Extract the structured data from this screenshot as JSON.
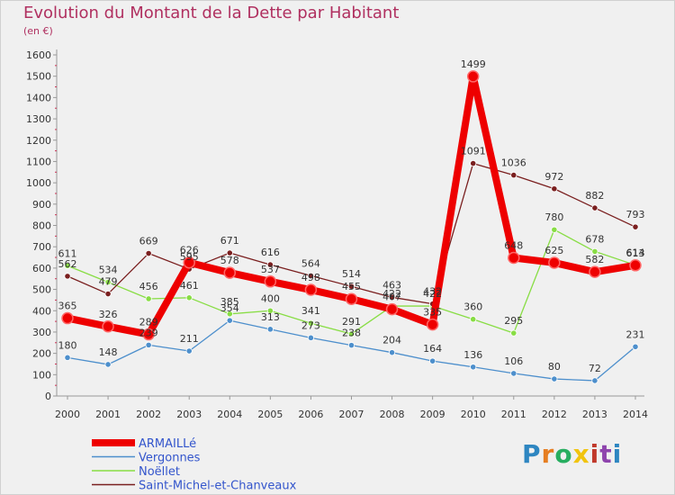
{
  "title": "Evolution du Montant de la Dette par Habitant",
  "subtitle": "(en €)",
  "brand": "Proxiti",
  "chart_data": {
    "type": "line",
    "x": [
      "2000",
      "2001",
      "2002",
      "2003",
      "2004",
      "2005",
      "2006",
      "2007",
      "2008",
      "2009",
      "2010",
      "2011",
      "2012",
      "2013",
      "2014"
    ],
    "ylim": [
      0,
      1600
    ],
    "yticks": [
      0,
      100,
      200,
      300,
      400,
      500,
      600,
      700,
      800,
      900,
      1000,
      1100,
      1200,
      1300,
      1400,
      1500,
      1600
    ],
    "grid": false,
    "legend": "bottom-left",
    "series": [
      {
        "name": "ARMAILLé",
        "color": "#ee0000",
        "emphasis": true,
        "values": [
          365,
          326,
          289,
          626,
          578,
          537,
          498,
          455,
          407,
          335,
          1499,
          648,
          625,
          582,
          613
        ]
      },
      {
        "name": "Vergonnes",
        "color": "#4d8fcc",
        "values": [
          180,
          148,
          239,
          211,
          354,
          313,
          273,
          238,
          204,
          164,
          136,
          106,
          80,
          72,
          231
        ]
      },
      {
        "name": "Noëllet",
        "color": "#88dd44",
        "values": [
          611,
          534,
          456,
          461,
          385,
          400,
          341,
          291,
          422,
          422,
          360,
          295,
          780,
          678,
          614
        ]
      },
      {
        "name": "Saint-Michel-et-Chanveaux",
        "color": "#7a1f1f",
        "values": [
          562,
          479,
          669,
          595,
          671,
          616,
          564,
          514,
          463,
          432,
          1091,
          1036,
          972,
          882,
          793
        ]
      }
    ]
  }
}
